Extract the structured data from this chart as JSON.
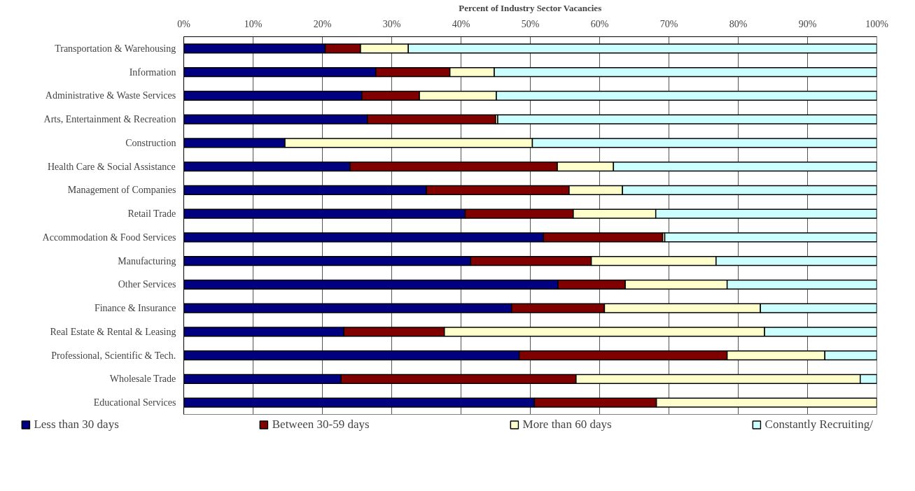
{
  "chart_data": {
    "type": "bar",
    "orientation": "horizontal",
    "stacked": true,
    "xlabel": "Percent of Industry Sector Vacancies",
    "categories": [
      "Transportation & Warehousing",
      "Information",
      "Administrative & Waste Services",
      "Arts, Entertainment & Recreation",
      "Construction",
      "Health Care & Social Assistance",
      "Management of Companies",
      "Retail Trade",
      "Accommodation & Food Services",
      "Manufacturing",
      "Other Services",
      "Finance & Insurance",
      "Real Estate & Rental & Leasing",
      "Professional, Scientific & Tech.",
      "Wholesale Trade",
      "Educational Services"
    ],
    "series": [
      {
        "name": "Less than 30 days",
        "color": "#000080",
        "values": [
          20.4,
          27.7,
          25.7,
          26.5,
          14.6,
          24.0,
          35.0,
          40.6,
          51.9,
          41.4,
          54.0,
          47.3,
          23.1,
          48.4,
          22.7,
          50.6
        ]
      },
      {
        "name": "Between 30-59 days",
        "color": "#800000",
        "values": [
          5.1,
          10.7,
          8.3,
          18.5,
          0,
          29.9,
          20.6,
          15.6,
          17.2,
          17.4,
          9.7,
          13.4,
          14.5,
          30.0,
          33.9,
          17.6
        ]
      },
      {
        "name": "More than 60 days",
        "color": "#ffffcc",
        "values": [
          6.9,
          6.4,
          11.1,
          0.3,
          35.7,
          8.1,
          7.7,
          11.9,
          0.3,
          18.0,
          14.7,
          22.5,
          46.2,
          14.1,
          41.0,
          31.8
        ]
      },
      {
        "name": "Constantly Recruiting/",
        "color": "#ccffff",
        "values": [
          67.6,
          55.2,
          54.9,
          54.7,
          49.7,
          38.0,
          36.7,
          31.9,
          30.6,
          23.2,
          21.6,
          16.8,
          16.2,
          7.5,
          2.4,
          0
        ]
      }
    ],
    "xlim": [
      0,
      100
    ],
    "xticks": [
      {
        "value": 0,
        "label": "0%"
      },
      {
        "value": 10,
        "label": "10%"
      },
      {
        "value": 20,
        "label": "20%"
      },
      {
        "value": 30,
        "label": "30%"
      },
      {
        "value": 40,
        "label": "40%"
      },
      {
        "value": 50,
        "label": "50%"
      },
      {
        "value": 60,
        "label": "60%"
      },
      {
        "value": 70,
        "label": "70%"
      },
      {
        "value": 80,
        "label": "80%"
      },
      {
        "value": 90,
        "label": "90%"
      },
      {
        "value": 100,
        "label": "100%"
      }
    ],
    "grid": "x",
    "legend": "bottom"
  }
}
